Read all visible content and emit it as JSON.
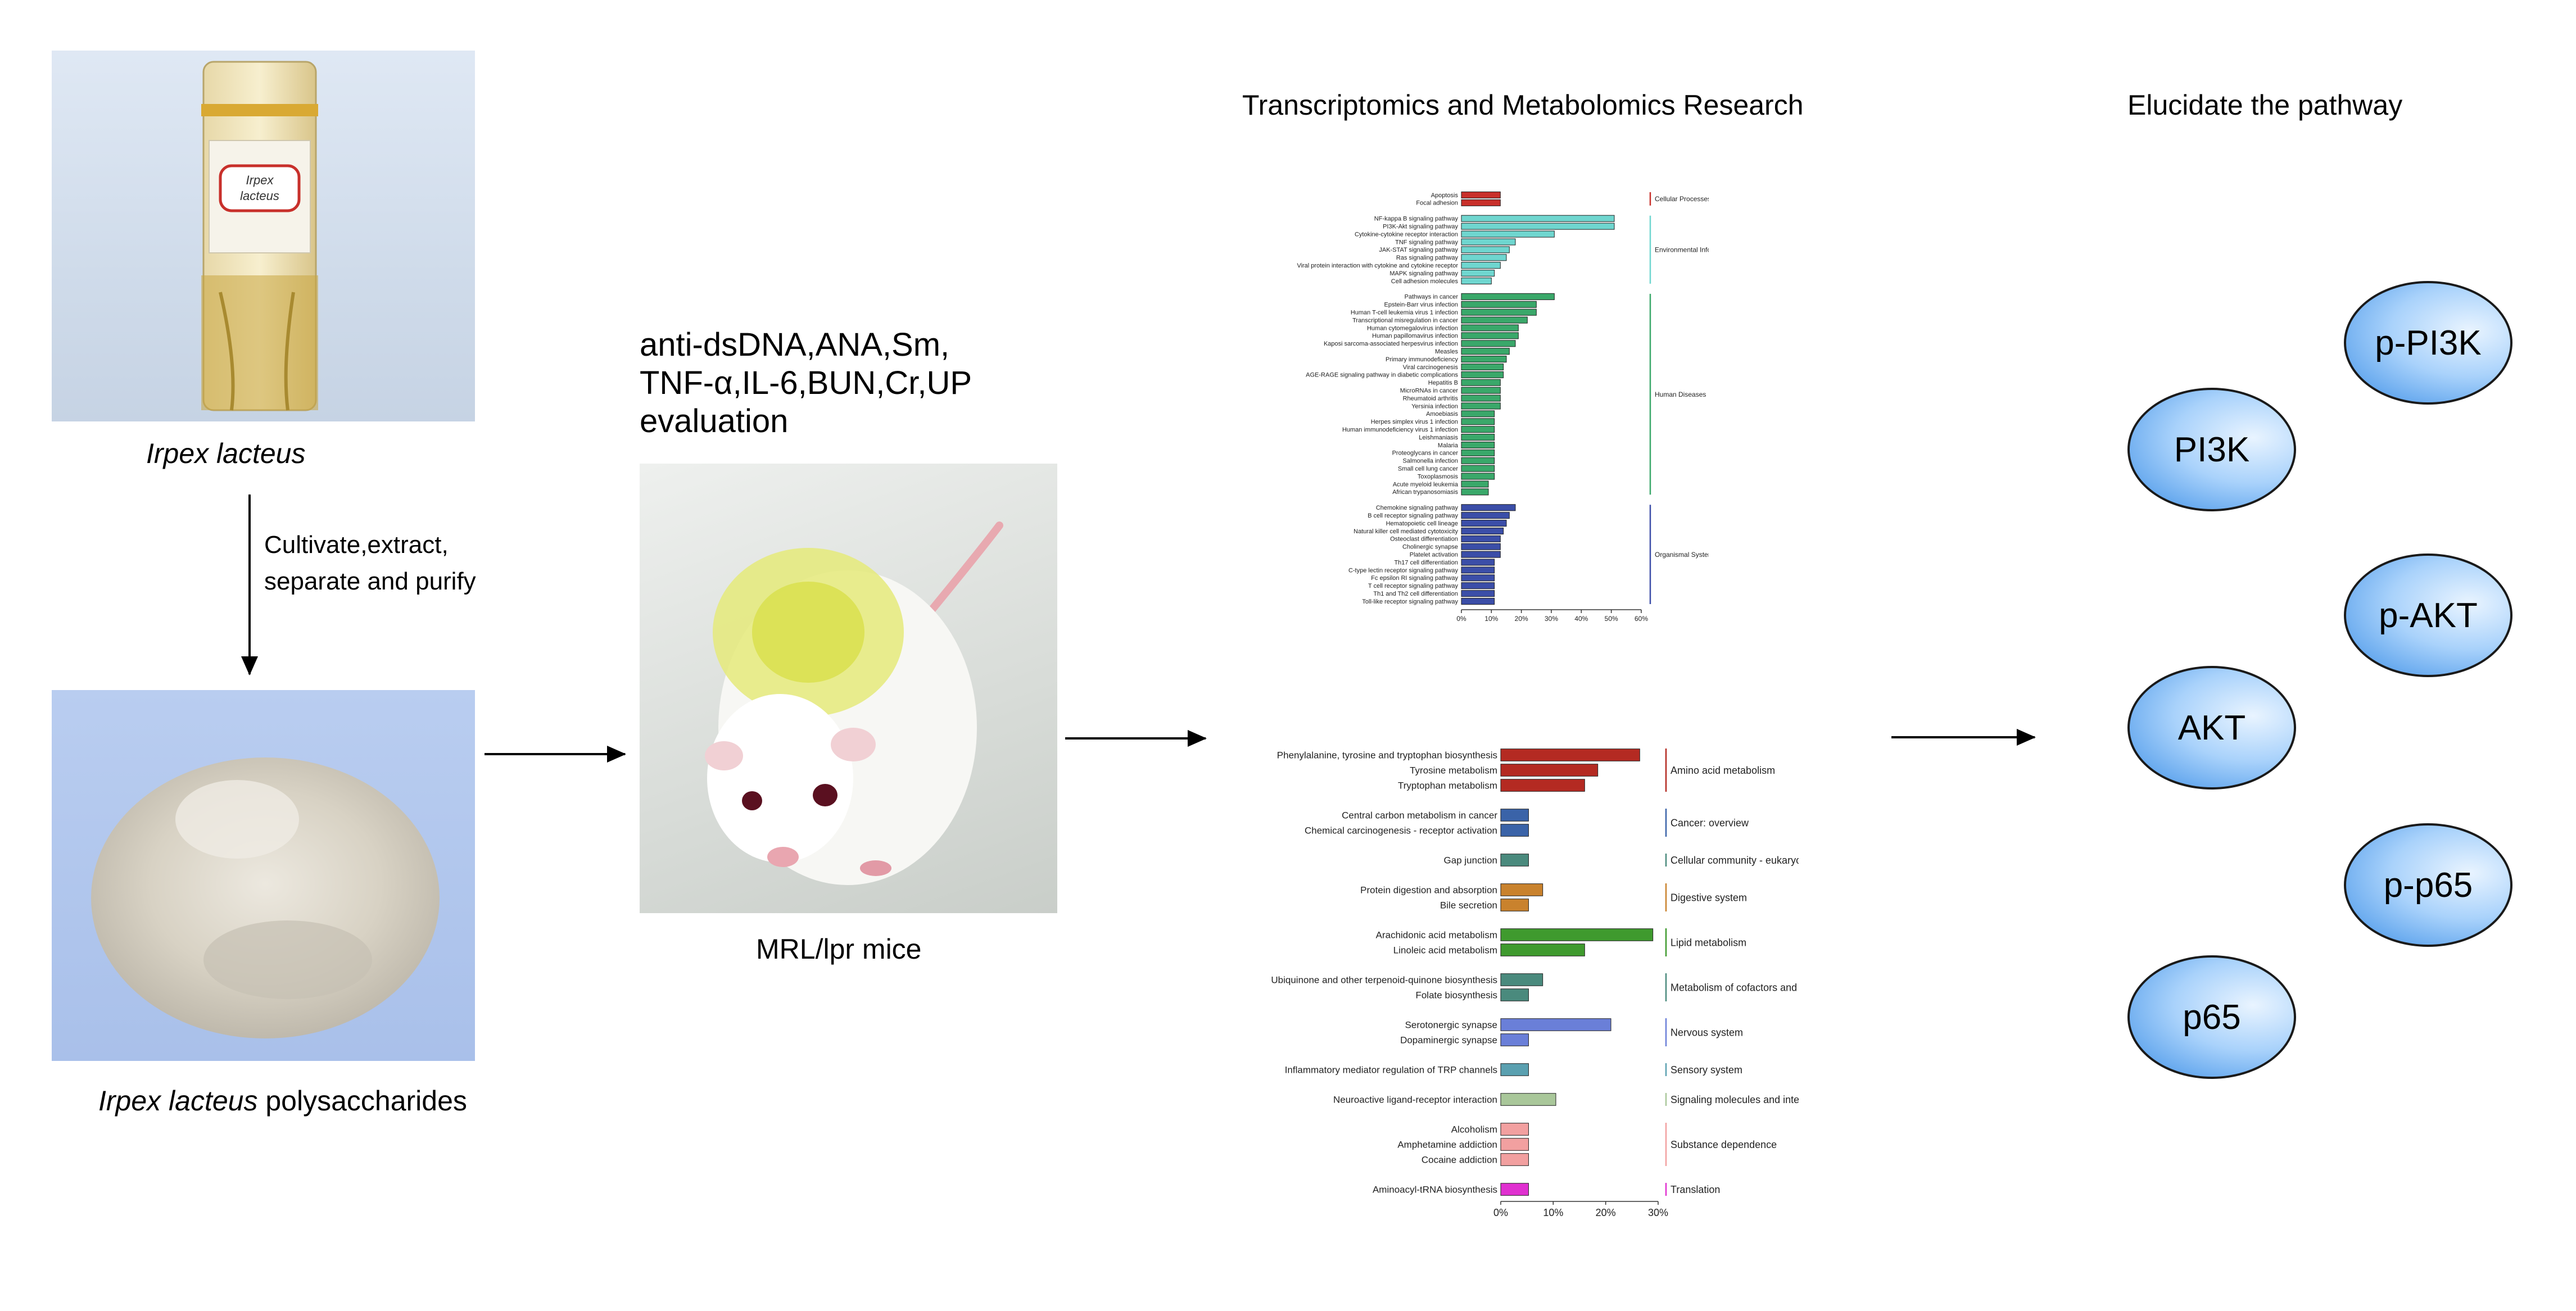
{
  "left": {
    "tube_caption": "Irpex lacteus",
    "tube_label_line1": "Irpex",
    "tube_label_line2": "lacteus",
    "process_line1": "Cultivate,extract,",
    "process_line2": "separate and purify",
    "powder_caption_italic": "Irpex lacteus",
    "powder_caption_rest": " polysaccharides"
  },
  "middle": {
    "eval_line1": "anti-dsDNA,ANA,Sm,",
    "eval_line2": "TNF-α,IL-6,BUN,Cr,UP",
    "eval_line3": "evaluation",
    "mouse_caption": "MRL/lpr mice"
  },
  "research": {
    "title": "Transcriptomics and  Metabolomics Research"
  },
  "pathway": {
    "title": "Elucidate the pathway",
    "nodes": [
      "p-PI3K",
      "PI3K",
      "p-AKT",
      "AKT",
      "p-p65",
      "p65"
    ]
  },
  "colors": {
    "cellular": "#c8302b",
    "environmental": "#6fd6cf",
    "human": "#3aa86a",
    "organismal": "#3b4ea8",
    "amino": "#b42a22",
    "cancer": "#3a63a8",
    "community": "#4a8a7d",
    "digestive": "#c9822d",
    "lipid": "#3f9a2e",
    "cofactor": "#4a8a7d",
    "nervous": "#6a7fd8",
    "sensory": "#5aa0b0",
    "signaling": "#a9c79a",
    "substance": "#f2a0a0",
    "translation": "#e030d0"
  },
  "chart_data": [
    {
      "type": "bar",
      "orientation": "horizontal",
      "xlim": [
        0,
        60
      ],
      "xticks": [
        "0%",
        "10%",
        "20%",
        "30%",
        "40%",
        "50%",
        "60%"
      ],
      "groups": [
        {
          "name": "Cellular Processes",
          "color": "#c8302b",
          "categories": [
            "Apoptosis",
            "Focal adhesion"
          ],
          "values": [
            13,
            13
          ]
        },
        {
          "name": "Environmental Information Processing",
          "color": "#6fd6cf",
          "categories": [
            "NF-kappa B signaling pathway",
            "PI3K-Akt signaling pathway",
            "Cytokine-cytokine receptor interaction",
            "TNF signaling pathway",
            "JAK-STAT signaling pathway",
            "Ras signaling pathway",
            "Viral protein interaction with cytokine and cytokine receptor",
            "MAPK signaling pathway",
            "Cell adhesion molecules"
          ],
          "values": [
            51,
            51,
            31,
            18,
            16,
            15,
            13,
            11,
            10
          ]
        },
        {
          "name": "Human Diseases",
          "color": "#3aa86a",
          "categories": [
            "Pathways in cancer",
            "Epstein-Barr virus infection",
            "Human T-cell leukemia virus 1 infection",
            "Transcriptional misregulation in cancer",
            "Human cytomegalovirus infection",
            "Human papillomavirus infection",
            "Kaposi sarcoma-associated herpesvirus infection",
            "Measles",
            "Primary immunodeficiency",
            "Viral carcinogenesis",
            "AGE-RAGE signaling pathway in diabetic complications",
            "Hepatitis B",
            "MicroRNAs in cancer",
            "Rheumatoid arthritis",
            "Yersinia infection",
            "Amoebiasis",
            "Herpes simplex virus 1 infection",
            "Human immunodeficiency virus 1 infection",
            "Leishmaniasis",
            "Malaria",
            "Proteoglycans in cancer",
            "Salmonella infection",
            "Small cell lung cancer",
            "Toxoplasmosis",
            "Acute myeloid leukemia",
            "African trypanosomiasis"
          ],
          "values": [
            31,
            25,
            25,
            22,
            19,
            19,
            18,
            16,
            15,
            14,
            14,
            13,
            13,
            13,
            13,
            11,
            11,
            11,
            11,
            11,
            11,
            11,
            11,
            11,
            9,
            9
          ]
        },
        {
          "name": "Organismal Systems",
          "color": "#3b4ea8",
          "categories": [
            "Chemokine signaling pathway",
            "B cell receptor signaling pathway",
            "Hematopoietic cell lineage",
            "Natural killer cell mediated cytotoxicity",
            "Osteoclast differentiation",
            "Cholinergic synapse",
            "Platelet activation",
            "Th17 cell differentiation",
            "C-type lectin receptor signaling pathway",
            "Fc epsilon RI signaling pathway",
            "T cell receptor signaling pathway",
            "Th1 and Th2 cell differentiation",
            "Toll-like receptor signaling pathway"
          ],
          "values": [
            18,
            16,
            15,
            14,
            13,
            13,
            13,
            11,
            11,
            11,
            11,
            11,
            11
          ]
        }
      ]
    },
    {
      "type": "bar",
      "orientation": "horizontal",
      "xlim": [
        0,
        30
      ],
      "xticks": [
        "0%",
        "10%",
        "20%",
        "30%"
      ],
      "groups": [
        {
          "name": "Amino acid metabolism",
          "color": "#b42a22",
          "categories": [
            "Phenylalanine, tyrosine and tryptophan biosynthesis",
            "Tyrosine metabolism",
            "Tryptophan metabolism"
          ],
          "values": [
            26.5,
            18.5,
            16
          ]
        },
        {
          "name": "Cancer: overview",
          "color": "#3a63a8",
          "categories": [
            "Central carbon metabolism in cancer",
            "Chemical carcinogenesis - receptor activation"
          ],
          "values": [
            5.3,
            5.3
          ]
        },
        {
          "name": "Cellular community - eukaryotes",
          "color": "#4a8a7d",
          "categories": [
            "Gap junction"
          ],
          "values": [
            5.3
          ]
        },
        {
          "name": "Digestive system",
          "color": "#c9822d",
          "categories": [
            "Protein digestion and absorption",
            "Bile secretion"
          ],
          "values": [
            8,
            5.3
          ]
        },
        {
          "name": "Lipid metabolism",
          "color": "#3f9a2e",
          "categories": [
            "Arachidonic acid metabolism",
            "Linoleic acid metabolism"
          ],
          "values": [
            29,
            16
          ]
        },
        {
          "name": "Metabolism of cofactors and vitamins",
          "color": "#4a8a7d",
          "categories": [
            "Ubiquinone and other terpenoid-quinone biosynthesis",
            "Folate biosynthesis"
          ],
          "values": [
            8,
            5.3
          ]
        },
        {
          "name": "Nervous system",
          "color": "#6a7fd8",
          "categories": [
            "Serotonergic synapse",
            "Dopaminergic synapse"
          ],
          "values": [
            21,
            5.3
          ]
        },
        {
          "name": "Sensory system",
          "color": "#5aa0b0",
          "categories": [
            "Inflammatory mediator regulation of TRP channels"
          ],
          "values": [
            5.3
          ]
        },
        {
          "name": "Signaling molecules and interaction",
          "color": "#a9c79a",
          "categories": [
            "Neuroactive ligand-receptor interaction"
          ],
          "values": [
            10.5
          ]
        },
        {
          "name": "Substance dependence",
          "color": "#f2a0a0",
          "categories": [
            "Alcoholism",
            "Amphetamine addiction",
            "Cocaine addiction"
          ],
          "values": [
            5.3,
            5.3,
            5.3
          ]
        },
        {
          "name": "Translation",
          "color": "#e030d0",
          "categories": [
            "Aminoacyl-tRNA biosynthesis"
          ],
          "values": [
            5.3
          ]
        }
      ]
    }
  ]
}
